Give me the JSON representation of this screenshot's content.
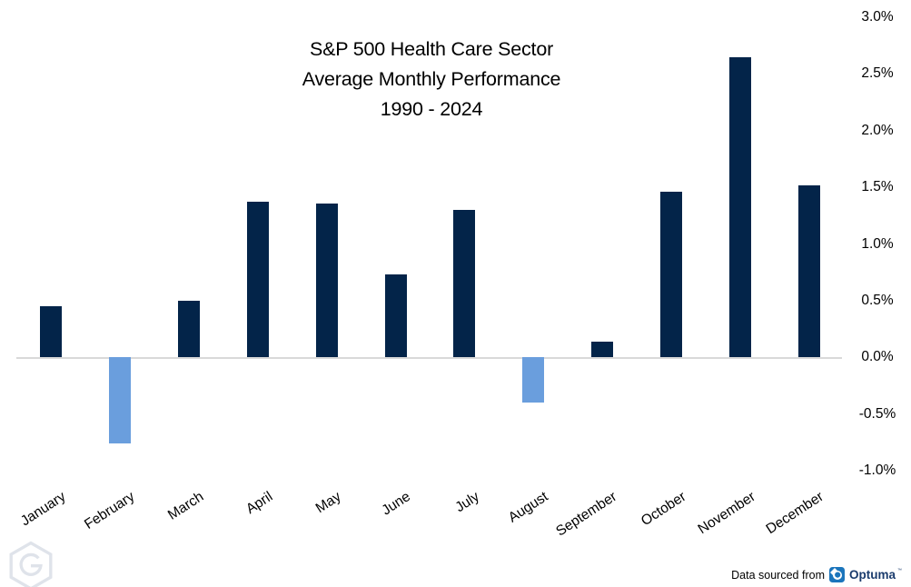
{
  "title": {
    "line1": "S&P 500 Health Care Sector",
    "line2": "Average Monthly Performance",
    "line3": "1990 - 2024"
  },
  "chart_data": {
    "type": "bar",
    "title": "S&P 500 Health Care Sector Average Monthly Performance 1990 - 2024",
    "categories": [
      "January",
      "February",
      "March",
      "April",
      "May",
      "June",
      "July",
      "August",
      "September",
      "October",
      "November",
      "December"
    ],
    "values": [
      0.45,
      -0.76,
      0.5,
      1.37,
      1.36,
      0.73,
      1.3,
      -0.4,
      0.14,
      1.46,
      2.65,
      1.52
    ],
    "value_unit": "%",
    "xlabel": "",
    "ylabel": "",
    "ylim": [
      -1.0,
      3.0
    ],
    "yticks": [
      3.0,
      2.5,
      2.0,
      1.5,
      1.0,
      0.5,
      0.0,
      -0.5,
      -1.0
    ],
    "ytick_labels": [
      "3.0%",
      "2.5%",
      "2.0%",
      "1.5%",
      "1.0%",
      "0.5%",
      "0.0%",
      "-0.5%",
      "-1.0%"
    ],
    "y_axis_side": "right",
    "grid": "zero-baseline-only",
    "legend": "none",
    "positive_color": "#032449",
    "negative_color": "#6a9edd",
    "zero_line_color": "#d9d9d9"
  },
  "footer": {
    "text": "Data sourced from",
    "brand": "Optuma",
    "mark": "™"
  },
  "icons": {
    "optuma_logo": "optuma-logo-icon",
    "watermark": "hexagon-g-watermark-icon"
  },
  "colors": {
    "background": "#ffffff",
    "title_text": "#000000",
    "axis_text": "#000000",
    "brand_blue": "#1b75bc",
    "brand_navy": "#1b3c6d",
    "watermark_gray": "#dfe3ea"
  }
}
